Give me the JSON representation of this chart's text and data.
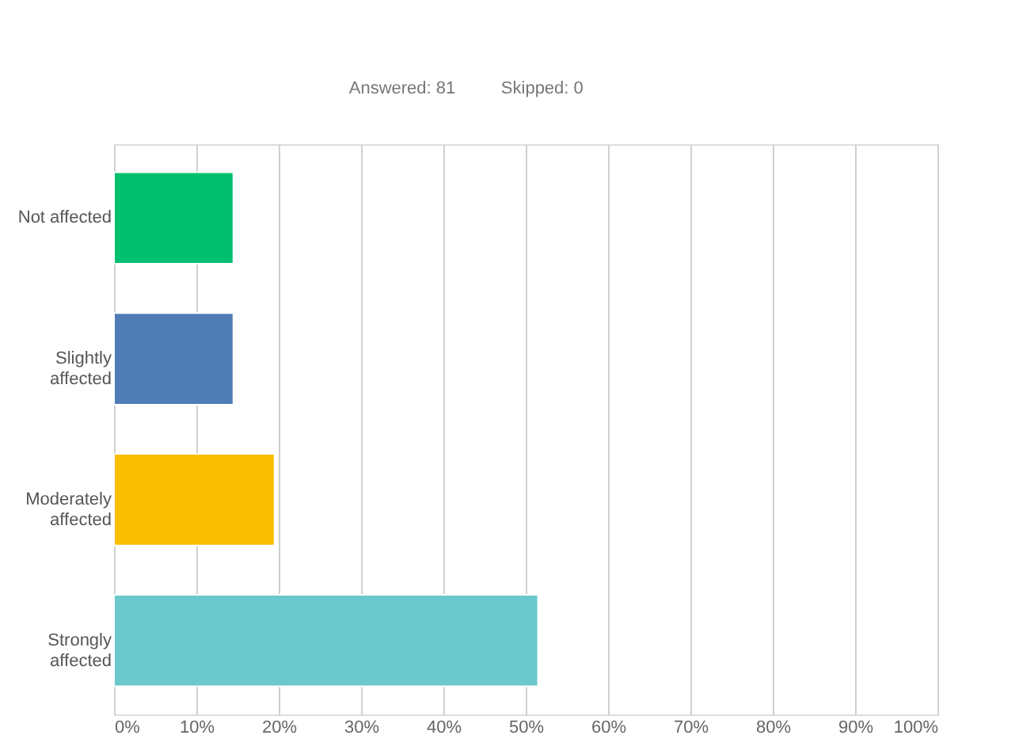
{
  "chart_data": {
    "type": "bar",
    "orientation": "horizontal",
    "annotations": [
      "Answered: 81",
      "Skipped: 0"
    ],
    "categories": [
      "Not affected",
      "Slightly affected",
      "Moderately affected",
      "Strongly affected"
    ],
    "values": [
      14.5,
      14.5,
      19.5,
      51.5
    ],
    "colors": [
      "#00bf6f",
      "#507cb6",
      "#f9be00",
      "#6bc8cd"
    ],
    "xlim": [
      0,
      100
    ],
    "xticks": [
      {
        "value": 0,
        "label": "0%"
      },
      {
        "value": 10,
        "label": "10%"
      },
      {
        "value": 20,
        "label": "20%"
      },
      {
        "value": 30,
        "label": "30%"
      },
      {
        "value": 40,
        "label": "40%"
      },
      {
        "value": 50,
        "label": "50%"
      },
      {
        "value": 60,
        "label": "60%"
      },
      {
        "value": 70,
        "label": "70%"
      },
      {
        "value": 80,
        "label": "80%"
      },
      {
        "value": 90,
        "label": "90%"
      },
      {
        "value": 100,
        "label": "100%"
      }
    ],
    "grid": "x",
    "legend": false
  }
}
